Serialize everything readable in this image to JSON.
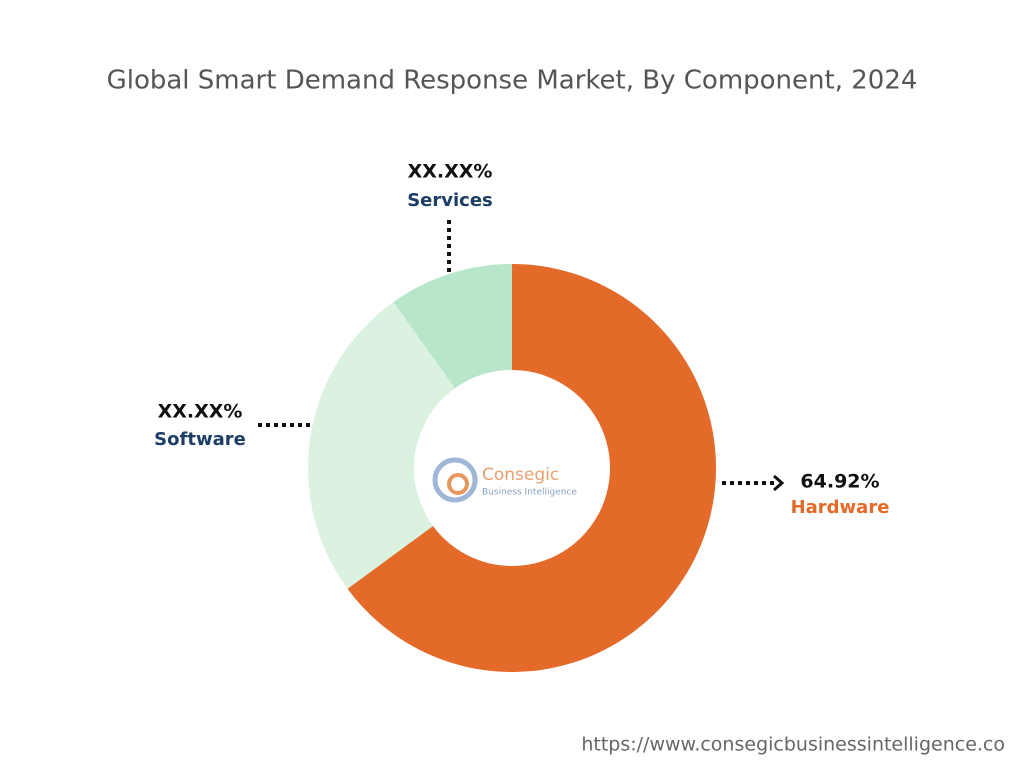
{
  "chart_data": {
    "type": "donut",
    "title": "Global Smart Demand Response Market, By Component, 2024",
    "categories": [
      "Hardware",
      "Software",
      "Services"
    ],
    "values": [
      64.92,
      25.2,
      9.88
    ],
    "value_labels": [
      "64.92%",
      "XX.XX%",
      "XX.XX%"
    ],
    "colors": [
      "#e36a28",
      "#daf2df",
      "#b8e6cb"
    ]
  },
  "logo": {
    "name": "Consegic",
    "tagline": "Business Intelligence"
  },
  "footer": {
    "url": "https://www.consegicbusinessintelligence.co"
  }
}
